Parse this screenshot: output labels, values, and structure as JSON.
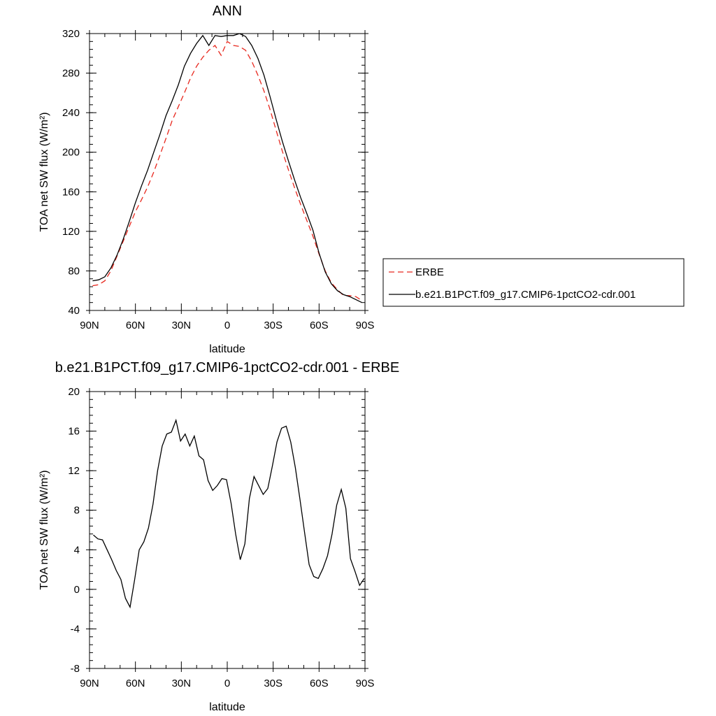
{
  "chart_data": [
    {
      "type": "line",
      "title": "ANN",
      "xlabel": "latitude",
      "ylabel": "TOA net SW flux (W/m²)",
      "xlim": [
        90,
        -90
      ],
      "ylim": [
        40,
        320
      ],
      "x_ticks": [
        90,
        60,
        30,
        0,
        -30,
        -60,
        -90
      ],
      "x_tick_labels": [
        "90N",
        "60N",
        "30N",
        "0",
        "30S",
        "60S",
        "90S"
      ],
      "y_ticks": [
        40,
        80,
        120,
        160,
        200,
        240,
        280,
        320
      ],
      "y_tick_labels": [
        "40",
        "80",
        "120",
        "160",
        "200",
        "240",
        "280",
        "320"
      ],
      "legend_position": "right",
      "series": [
        {
          "name": "ERBE",
          "color": "#e8281e",
          "dash": "dashed",
          "x": [
            88,
            84,
            80,
            76,
            72,
            68,
            64,
            60,
            56,
            52,
            48,
            44,
            40,
            36,
            32,
            28,
            24,
            20,
            16,
            12,
            8,
            4,
            0,
            -4,
            -8,
            -12,
            -16,
            -20,
            -24,
            -28,
            -32,
            -36,
            -40,
            -44,
            -48,
            -52,
            -56,
            -60,
            -64,
            -68,
            -72,
            -76,
            -80,
            -84,
            -88
          ],
          "y": [
            65,
            66,
            70,
            80,
            95,
            110,
            125,
            140,
            152,
            165,
            180,
            197,
            214,
            232,
            246,
            260,
            275,
            287,
            296,
            303,
            308,
            298,
            312,
            308,
            307,
            303,
            292,
            278,
            262,
            243,
            222,
            201,
            182,
            164,
            147,
            131,
            115,
            97,
            80,
            68,
            61,
            55,
            55,
            54,
            50
          ],
          "y_note": "estimated from figure"
        },
        {
          "name": "b.e21.B1PCT.f09_g17.CMIP6-1pctCO2-cdr.001",
          "color": "#000000",
          "dash": "solid",
          "x": [
            88,
            84,
            80,
            76,
            72,
            68,
            64,
            60,
            56,
            52,
            48,
            44,
            40,
            36,
            32,
            28,
            24,
            20,
            16,
            12,
            8,
            4,
            0,
            -4,
            -8,
            -12,
            -16,
            -20,
            -24,
            -28,
            -32,
            -36,
            -40,
            -44,
            -48,
            -52,
            -56,
            -60,
            -64,
            -68,
            -72,
            -76,
            -80,
            -84,
            -88
          ],
          "y": [
            70,
            71,
            74,
            83,
            96,
            112,
            130,
            149,
            166,
            182,
            200,
            218,
            237,
            252,
            268,
            287,
            300,
            310,
            318,
            308,
            318,
            317,
            318,
            318,
            320,
            317,
            308,
            295,
            278,
            256,
            233,
            211,
            191,
            172,
            154,
            138,
            121,
            98,
            79,
            67,
            60,
            56,
            54,
            51,
            48
          ]
        }
      ]
    },
    {
      "type": "line",
      "title": "b.e21.B1PCT.f09_g17.CMIP6-1pctCO2-cdr.001 - ERBE",
      "xlabel": "latitude",
      "ylabel": "TOA net SW flux (W/m²)",
      "xlim": [
        90,
        -90
      ],
      "ylim": [
        -8,
        20
      ],
      "x_ticks": [
        90,
        60,
        30,
        0,
        -30,
        -60,
        -90
      ],
      "x_tick_labels": [
        "90N",
        "60N",
        "30N",
        "0",
        "30S",
        "60S",
        "90S"
      ],
      "y_ticks": [
        -8,
        -4,
        0,
        4,
        8,
        12,
        16,
        20
      ],
      "y_tick_labels": [
        "-8",
        "-4",
        "0",
        "4",
        "8",
        "12",
        "16",
        "20"
      ],
      "series": [
        {
          "color": "#000000",
          "dash": "solid",
          "x": [
            87.5,
            84.5,
            81.5,
            78.5,
            75.5,
            72.5,
            69.5,
            66.5,
            63.5,
            60.5,
            57.5,
            54.5,
            51.5,
            48.5,
            45.5,
            42.5,
            39.5,
            36.5,
            33.5,
            30.5,
            27.5,
            24.5,
            21.5,
            18.5,
            15.5,
            12.5,
            9.5,
            6.5,
            3.5,
            0.5,
            -2.5,
            -5.5,
            -8.5,
            -11.5,
            -14.5,
            -17.5,
            -20.5,
            -23.5,
            -26.5,
            -29.5,
            -32.5,
            -35.5,
            -38.5,
            -41.5,
            -44.5,
            -47.5,
            -50.5,
            -53.5,
            -56.5,
            -59.5,
            -62.5,
            -65.5,
            -68.5,
            -71.5,
            -74.5,
            -77.5,
            -80.5,
            -83.5,
            -86.5,
            -89.5
          ],
          "y": [
            5.5,
            5.1,
            5.0,
            4.0,
            3.0,
            1.9,
            1.0,
            -0.9,
            -1.8,
            1.0,
            4.0,
            4.8,
            6.2,
            8.6,
            12.0,
            14.5,
            15.7,
            15.9,
            17.1,
            15.0,
            15.7,
            14.5,
            15.5,
            13.5,
            13.1,
            11.0,
            10.0,
            10.5,
            11.2,
            11.1,
            8.7,
            5.6,
            3.0,
            4.6,
            9.2,
            11.4,
            10.5,
            9.6,
            10.2,
            12.5,
            14.9,
            16.3,
            16.5,
            14.9,
            12.3,
            9.1,
            5.8,
            2.5,
            1.3,
            1.1,
            2.1,
            3.4,
            5.6,
            8.5,
            10.1,
            8.2,
            3.1,
            1.8,
            0.4,
            1.1
          ]
        }
      ]
    }
  ]
}
